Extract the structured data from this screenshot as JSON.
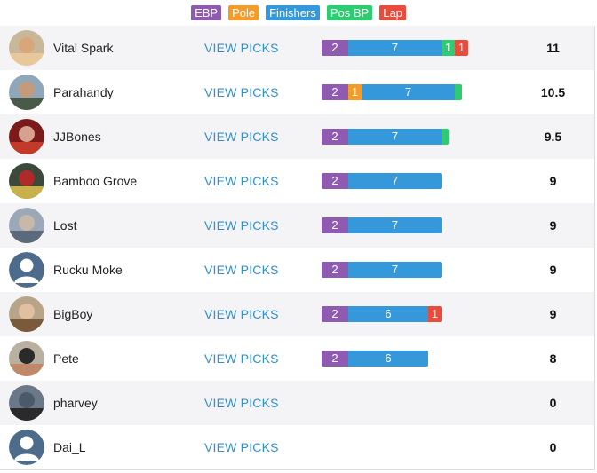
{
  "legend": [
    {
      "label": "EBP",
      "color": "#8e5bb0"
    },
    {
      "label": "Pole",
      "color": "#f39c2a"
    },
    {
      "label": "Finishers",
      "color": "#3498db"
    },
    {
      "label": "Pos BP",
      "color": "#2ecc71"
    },
    {
      "label": "Lap",
      "color": "#e74c3c"
    }
  ],
  "link_label": "VIEW PICKS",
  "rows": [
    {
      "name": "Vital Spark",
      "avatar": "blonde-woman-photo",
      "total": "11",
      "segments": [
        {
          "type": "EBP",
          "value": 2,
          "label": "2"
        },
        {
          "type": "Finishers",
          "value": 7,
          "label": "7"
        },
        {
          "type": "Pos BP",
          "value": 1,
          "label": "1"
        },
        {
          "type": "Lap",
          "value": 1,
          "label": "1"
        }
      ]
    },
    {
      "name": "Parahandy",
      "avatar": "man-outdoors-photo",
      "total": "10.5",
      "segments": [
        {
          "type": "EBP",
          "value": 2,
          "label": "2"
        },
        {
          "type": "Pole",
          "value": 1,
          "label": "1"
        },
        {
          "type": "Finishers",
          "value": 7,
          "label": "7"
        },
        {
          "type": "Pos BP",
          "value": 0.5,
          "label": ""
        }
      ]
    },
    {
      "name": "JJBones",
      "avatar": "man-red-photo",
      "total": "9.5",
      "segments": [
        {
          "type": "EBP",
          "value": 2,
          "label": "2"
        },
        {
          "type": "Finishers",
          "value": 7,
          "label": "7"
        },
        {
          "type": "Pos BP",
          "value": 0.5,
          "label": ""
        }
      ]
    },
    {
      "name": "Bamboo Grove",
      "avatar": "crowd-photo",
      "total": "9",
      "segments": [
        {
          "type": "EBP",
          "value": 2,
          "label": "2"
        },
        {
          "type": "Finishers",
          "value": 7,
          "label": "7"
        }
      ]
    },
    {
      "name": "Lost",
      "avatar": "group-photo",
      "total": "9",
      "segments": [
        {
          "type": "EBP",
          "value": 2,
          "label": "2"
        },
        {
          "type": "Finishers",
          "value": 7,
          "label": "7"
        }
      ]
    },
    {
      "name": "Rucku Moke",
      "avatar": "default-user",
      "total": "9",
      "segments": [
        {
          "type": "EBP",
          "value": 2,
          "label": "2"
        },
        {
          "type": "Finishers",
          "value": 7,
          "label": "7"
        }
      ]
    },
    {
      "name": "BigBoy",
      "avatar": "man-glasses-photo",
      "total": "9",
      "segments": [
        {
          "type": "EBP",
          "value": 2,
          "label": "2"
        },
        {
          "type": "Finishers",
          "value": 6,
          "label": "6"
        },
        {
          "type": "Lap",
          "value": 1,
          "label": "1"
        }
      ]
    },
    {
      "name": "Pete",
      "avatar": "man-sunglasses-photo",
      "total": "8",
      "segments": [
        {
          "type": "EBP",
          "value": 2,
          "label": "2"
        },
        {
          "type": "Finishers",
          "value": 6,
          "label": "6"
        }
      ]
    },
    {
      "name": "pharvey",
      "avatar": "man-dark-photo",
      "total": "0",
      "segments": []
    },
    {
      "name": "Dai_L",
      "avatar": "default-user",
      "total": "0",
      "segments": []
    }
  ]
}
